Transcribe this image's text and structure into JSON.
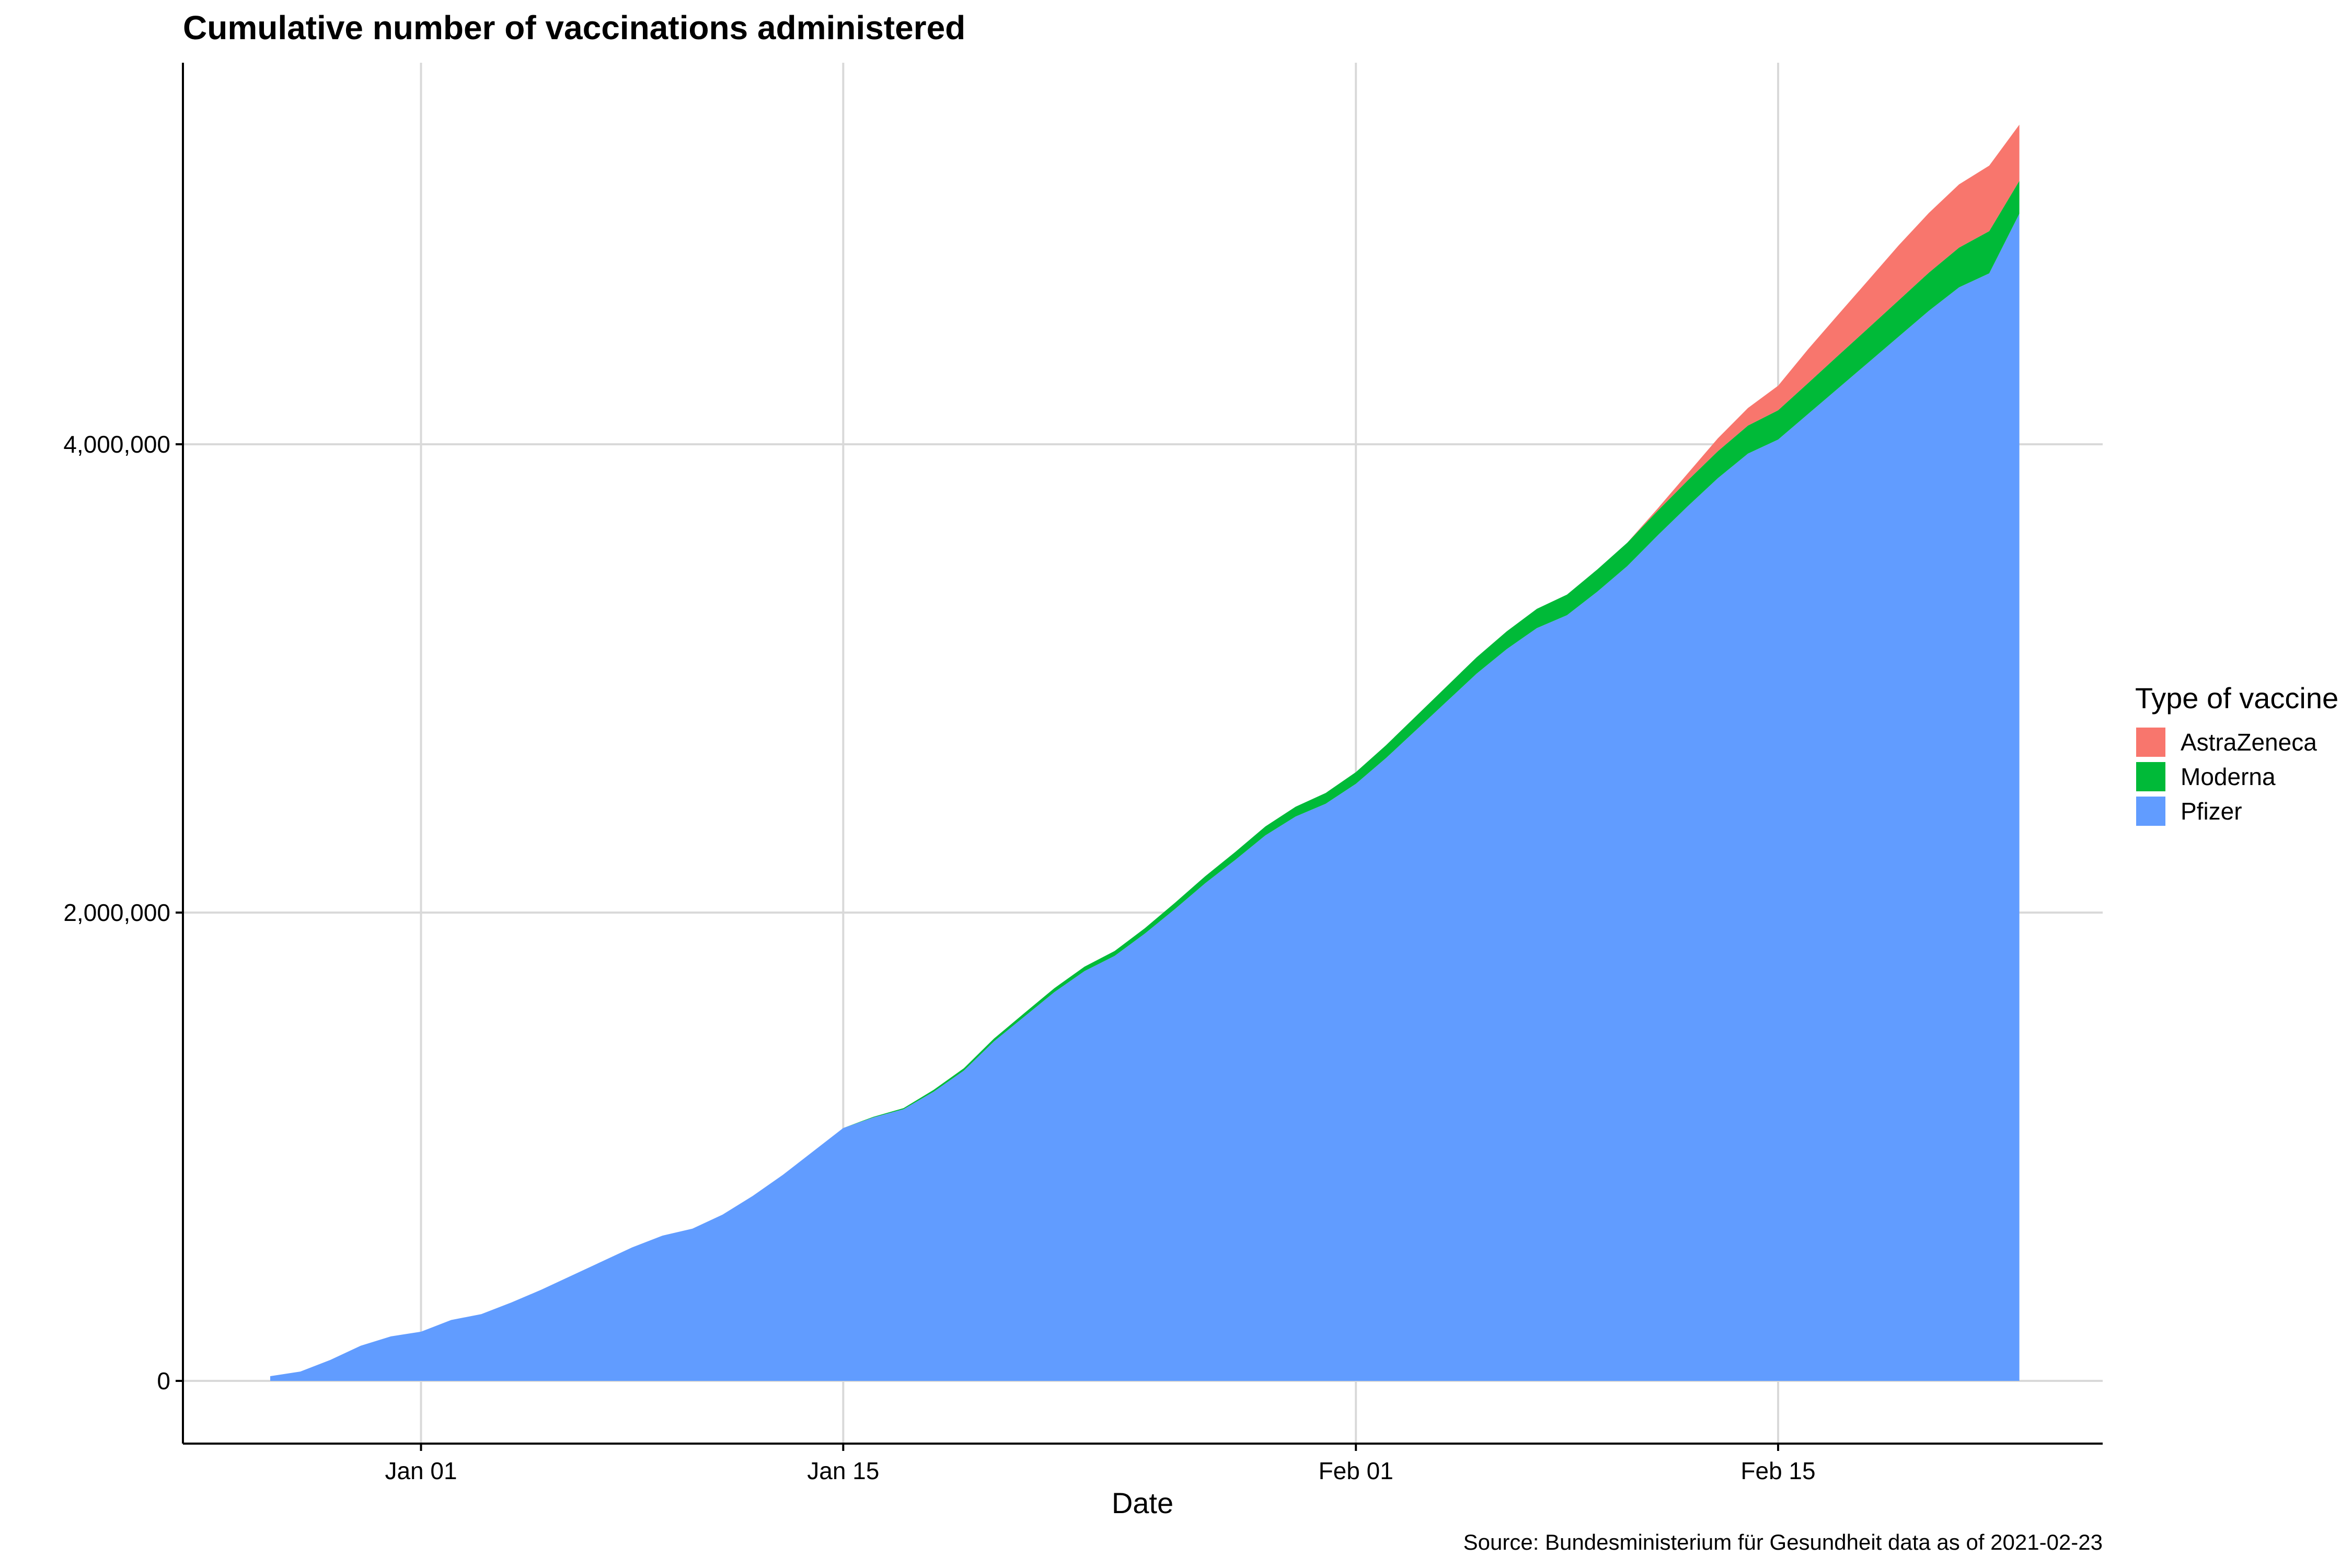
{
  "chart_data": {
    "type": "area",
    "stacked": true,
    "title": "Cumulative number of vaccinations administered",
    "xlabel": "Date",
    "ylabel": "",
    "caption": "Source: Bundesministerium für Gesundheit data as of 2021-02-23",
    "legend_title": "Type of vaccine",
    "legend_position": "right",
    "grid": true,
    "x_start": "2020-12-27",
    "x_tick_labels": [
      "Jan 01",
      "Jan 15",
      "Feb 01",
      "Feb 15"
    ],
    "x_tick_day_index": [
      5,
      19,
      36,
      50
    ],
    "ylim": [
      -200000,
      5600000
    ],
    "y_ticks": [
      0,
      2000000,
      4000000
    ],
    "y_tick_labels": [
      "0",
      "2,000,000",
      "4,000,000"
    ],
    "dates": [
      "2020-12-27",
      "2020-12-28",
      "2020-12-29",
      "2020-12-30",
      "2020-12-31",
      "2021-01-01",
      "2021-01-02",
      "2021-01-03",
      "2021-01-04",
      "2021-01-05",
      "2021-01-06",
      "2021-01-07",
      "2021-01-08",
      "2021-01-09",
      "2021-01-10",
      "2021-01-11",
      "2021-01-12",
      "2021-01-13",
      "2021-01-14",
      "2021-01-15",
      "2021-01-16",
      "2021-01-17",
      "2021-01-18",
      "2021-01-19",
      "2021-01-20",
      "2021-01-21",
      "2021-01-22",
      "2021-01-23",
      "2021-01-24",
      "2021-01-25",
      "2021-01-26",
      "2021-01-27",
      "2021-01-28",
      "2021-01-29",
      "2021-01-30",
      "2021-01-31",
      "2021-02-01",
      "2021-02-02",
      "2021-02-03",
      "2021-02-04",
      "2021-02-05",
      "2021-02-06",
      "2021-02-07",
      "2021-02-08",
      "2021-02-09",
      "2021-02-10",
      "2021-02-11",
      "2021-02-12",
      "2021-02-13",
      "2021-02-14",
      "2021-02-15",
      "2021-02-16",
      "2021-02-17",
      "2021-02-18",
      "2021-02-19",
      "2021-02-20",
      "2021-02-21",
      "2021-02-22",
      "2021-02-23"
    ],
    "series": [
      {
        "name": "AstraZeneca",
        "color": "#F8766D",
        "values": [
          0,
          0,
          0,
          0,
          0,
          0,
          0,
          0,
          0,
          0,
          0,
          0,
          0,
          0,
          0,
          0,
          0,
          0,
          0,
          0,
          0,
          0,
          0,
          0,
          0,
          0,
          0,
          0,
          0,
          0,
          0,
          0,
          0,
          0,
          0,
          0,
          0,
          0,
          0,
          0,
          0,
          0,
          0,
          0,
          0,
          0,
          10000,
          30000,
          55000,
          75000,
          105000,
          145000,
          175000,
          205000,
          235000,
          255000,
          270000,
          280000,
          240000
        ]
      },
      {
        "name": "Moderna",
        "color": "#00BA38",
        "values": [
          0,
          0,
          0,
          0,
          0,
          0,
          0,
          0,
          0,
          0,
          0,
          0,
          0,
          0,
          0,
          0,
          0,
          0,
          0,
          0,
          3000,
          5000,
          8000,
          10000,
          12000,
          15000,
          17000,
          19000,
          21000,
          23000,
          27000,
          30000,
          34000,
          38000,
          42000,
          46000,
          50000,
          55000,
          60000,
          65000,
          70000,
          76000,
          82000,
          88000,
          95000,
          100000,
          105000,
          110000,
          115000,
          120000,
          125000,
          132000,
          140000,
          147000,
          155000,
          163000,
          170000,
          180000,
          140000
        ]
      },
      {
        "name": "Pfizer",
        "color": "#619CFF",
        "values": [
          20000,
          40000,
          90000,
          150000,
          190000,
          210000,
          260000,
          285000,
          335000,
          390000,
          450000,
          510000,
          570000,
          620000,
          650000,
          710000,
          790000,
          880000,
          980000,
          1080000,
          1125000,
          1160000,
          1235000,
          1325000,
          1450000,
          1555000,
          1660000,
          1750000,
          1815000,
          1910000,
          2015000,
          2125000,
          2225000,
          2330000,
          2410000,
          2465000,
          2550000,
          2660000,
          2780000,
          2900000,
          3020000,
          3125000,
          3215000,
          3270000,
          3370000,
          3480000,
          3610000,
          3735000,
          3855000,
          3960000,
          4020000,
          4130000,
          4240000,
          4350000,
          4460000,
          4570000,
          4670000,
          4730000,
          4985000
        ]
      }
    ]
  }
}
